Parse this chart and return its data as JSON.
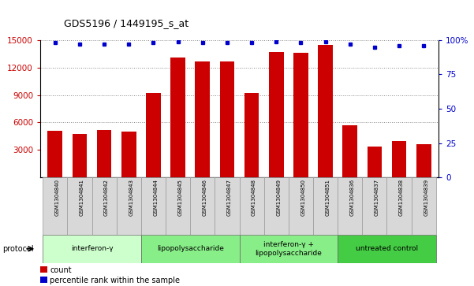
{
  "title": "GDS5196 / 1449195_s_at",
  "samples": [
    "GSM1304840",
    "GSM1304841",
    "GSM1304842",
    "GSM1304843",
    "GSM1304844",
    "GSM1304845",
    "GSM1304846",
    "GSM1304847",
    "GSM1304848",
    "GSM1304849",
    "GSM1304850",
    "GSM1304851",
    "GSM1304836",
    "GSM1304837",
    "GSM1304838",
    "GSM1304839"
  ],
  "bar_values": [
    5100,
    4700,
    5200,
    5000,
    9200,
    13100,
    12700,
    12700,
    9200,
    13700,
    13600,
    14500,
    5700,
    3400,
    4000,
    3600
  ],
  "percentile_values": [
    98,
    97,
    97,
    97,
    98,
    99,
    98,
    98,
    98,
    99,
    98,
    99,
    97,
    95,
    96,
    96
  ],
  "bar_color": "#cc0000",
  "dot_color": "#0000cc",
  "ylim_left": [
    0,
    15000
  ],
  "ylim_right": [
    0,
    100
  ],
  "yticks_left": [
    3000,
    6000,
    9000,
    12000,
    15000
  ],
  "yticks_right": [
    0,
    25,
    50,
    75,
    100
  ],
  "ytick_labels_right": [
    "0",
    "25",
    "50",
    "75",
    "100%"
  ],
  "groups": [
    {
      "label": "interferon-γ",
      "start": 0,
      "end": 4,
      "color": "#ccffcc"
    },
    {
      "label": "lipopolysaccharide",
      "start": 4,
      "end": 8,
      "color": "#88ee88"
    },
    {
      "label": "interferon-γ +\nlipopolysaccharide",
      "start": 8,
      "end": 12,
      "color": "#88ee88"
    },
    {
      "label": "untreated control",
      "start": 12,
      "end": 16,
      "color": "#44cc44"
    }
  ],
  "legend_count_label": "count",
  "legend_percentile_label": "percentile rank within the sample",
  "protocol_label": "protocol",
  "background_color": "#ffffff",
  "plot_bg_color": "#ffffff",
  "grid_color": "#888888",
  "group_colors": [
    "#ccffcc",
    "#88ee88",
    "#88ee88",
    "#44cc44"
  ]
}
